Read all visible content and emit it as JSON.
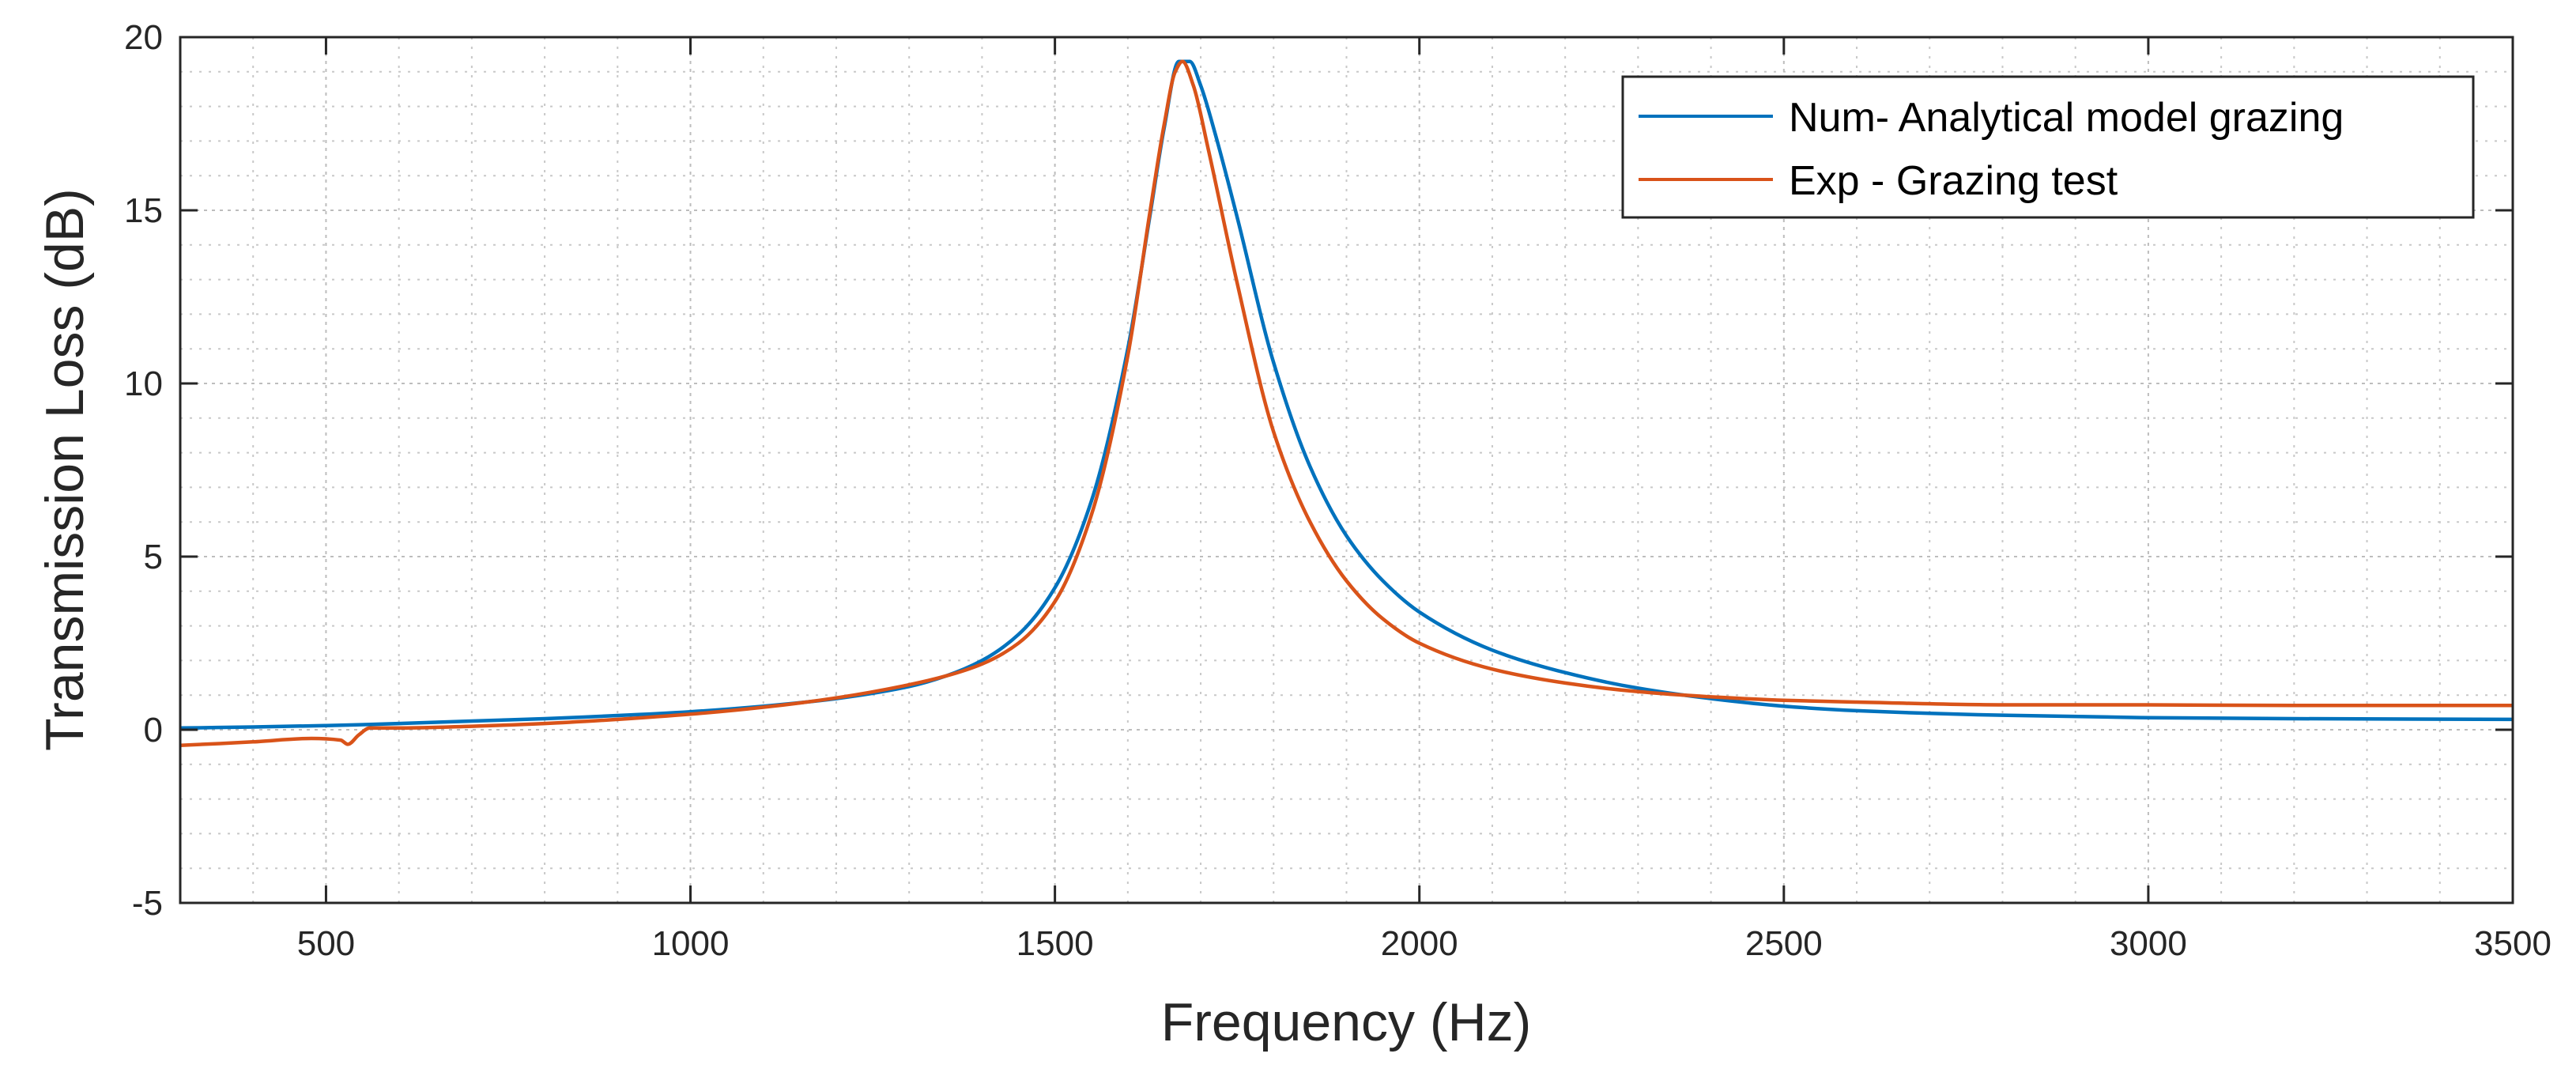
{
  "chart_data": {
    "type": "line",
    "title": "",
    "xlabel": "Frequency (Hz)",
    "ylabel": "Transmission Loss (dB)",
    "xlim": [
      300,
      3500
    ],
    "ylim": [
      -5,
      20
    ],
    "xticks": [
      500,
      1000,
      1500,
      2000,
      2500,
      3000,
      3500
    ],
    "xtick_labels": [
      "500",
      "1000",
      "1500",
      "2000",
      "2500",
      "3000",
      "3500"
    ],
    "yticks": [
      -5,
      0,
      5,
      10,
      15,
      20
    ],
    "ytick_labels": [
      "-5",
      "0",
      "5",
      "10",
      "15",
      "20"
    ],
    "grid": true,
    "minor_grid": true,
    "legend_location": "top-right",
    "series": [
      {
        "name": "Num- Analytical model grazing",
        "color": "#0072BD",
        "x": [
          300,
          400,
          500,
          600,
          700,
          800,
          900,
          1000,
          1100,
          1200,
          1300,
          1350,
          1400,
          1450,
          1500,
          1550,
          1600,
          1630,
          1650,
          1670,
          1685,
          1700,
          1720,
          1750,
          1800,
          1850,
          1900,
          1950,
          2000,
          2100,
          2200,
          2300,
          2400,
          2500,
          2600,
          2800,
          3000,
          3200,
          3500
        ],
        "y": [
          0.05,
          0.08,
          0.12,
          0.18,
          0.25,
          0.32,
          0.41,
          0.52,
          0.68,
          0.9,
          1.25,
          1.55,
          2.0,
          2.75,
          4.1,
          6.6,
          11.0,
          14.8,
          17.4,
          19.3,
          19.3,
          18.6,
          17.2,
          14.8,
          10.6,
          7.6,
          5.6,
          4.3,
          3.4,
          2.3,
          1.65,
          1.2,
          0.9,
          0.68,
          0.55,
          0.42,
          0.35,
          0.32,
          0.3
        ]
      },
      {
        "name": "Exp - Grazing test",
        "color": "#D95319",
        "x": [
          300,
          400,
          480,
          520,
          530,
          545,
          560,
          600,
          700,
          800,
          900,
          1000,
          1100,
          1200,
          1300,
          1350,
          1400,
          1450,
          1500,
          1550,
          1600,
          1630,
          1650,
          1665,
          1675,
          1690,
          1710,
          1750,
          1800,
          1850,
          1900,
          1950,
          2000,
          2100,
          2200,
          2300,
          2400,
          2500,
          2600,
          2800,
          3000,
          3200,
          3500
        ],
        "y": [
          -0.45,
          -0.35,
          -0.25,
          -0.3,
          -0.42,
          -0.15,
          0.05,
          0.05,
          0.1,
          0.18,
          0.3,
          0.45,
          0.65,
          0.92,
          1.3,
          1.55,
          1.9,
          2.5,
          3.7,
          6.2,
          10.8,
          14.9,
          17.5,
          19.0,
          19.3,
          18.6,
          16.8,
          12.9,
          8.6,
          6.0,
          4.3,
          3.2,
          2.5,
          1.75,
          1.35,
          1.1,
          0.95,
          0.85,
          0.8,
          0.72,
          0.72,
          0.7,
          0.7
        ]
      }
    ]
  }
}
